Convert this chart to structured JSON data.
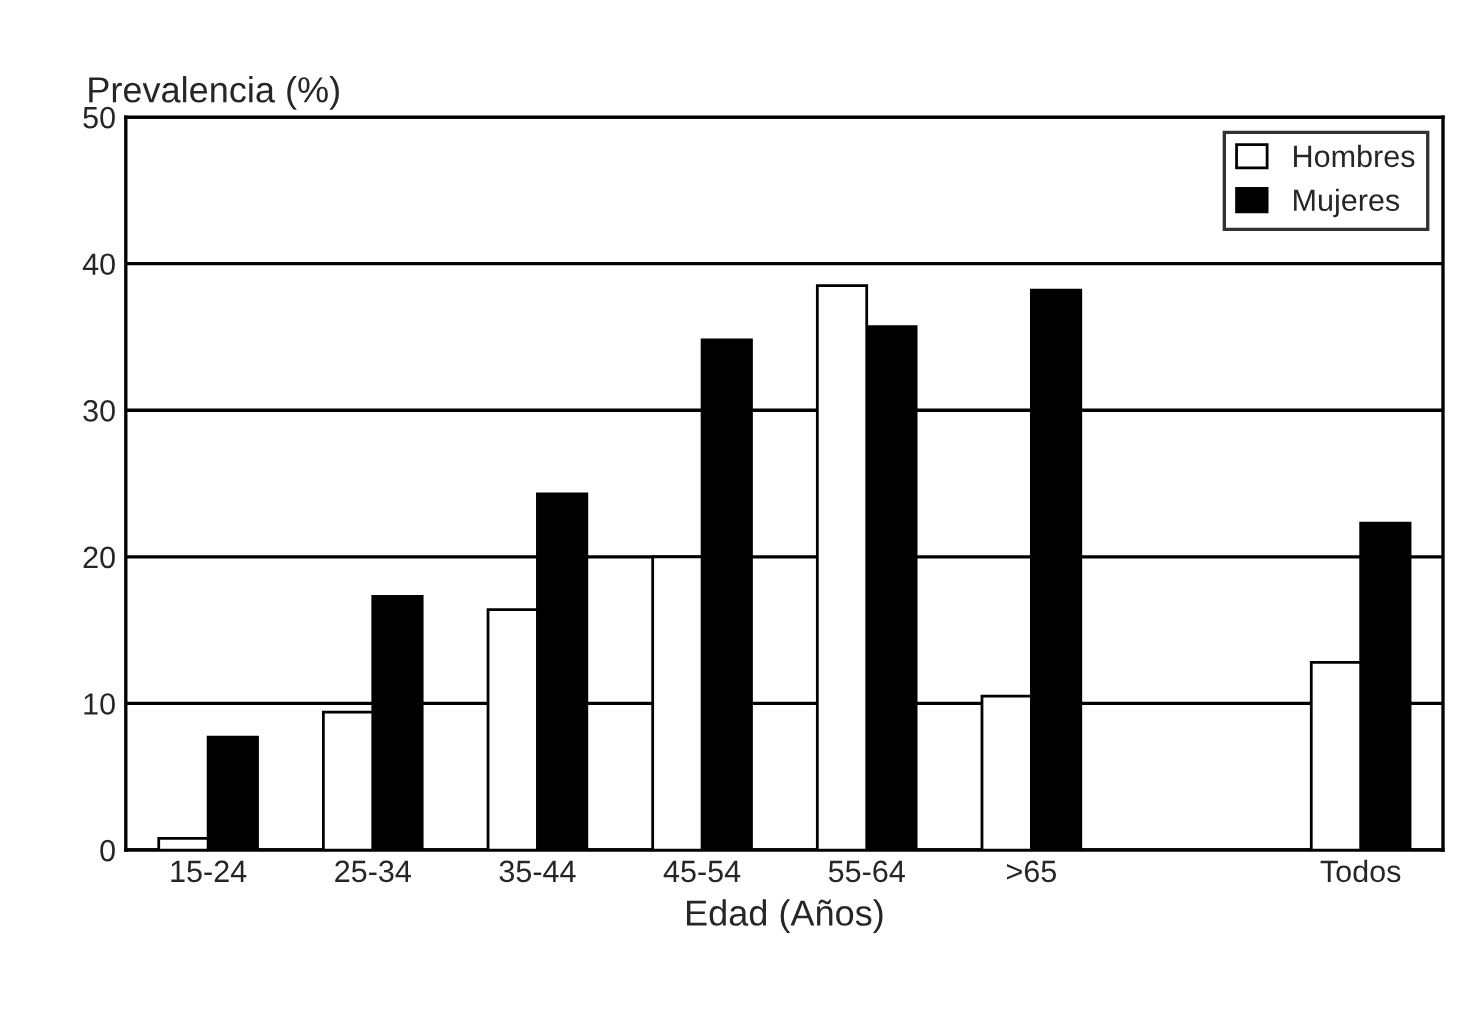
{
  "chart_data": {
    "type": "bar",
    "ylabel": "Prevalencia (%)",
    "xlabel": "Edad (Años)",
    "categories": [
      "15-24",
      "25-34",
      "35-44",
      "45-54",
      "55-64",
      ">65",
      null,
      "Todos"
    ],
    "series": [
      {
        "name": "Hombres",
        "color": "#ffffff",
        "values": [
          0.8,
          9.4,
          16.4,
          20,
          38.5,
          10.5,
          null,
          12.8
        ]
      },
      {
        "name": "Mujeres",
        "color": "#000000",
        "values": [
          7.7,
          17.3,
          24.3,
          34.8,
          35.7,
          38.2,
          null,
          22.3
        ]
      }
    ],
    "ylim": [
      0,
      50
    ],
    "yticks": [
      0,
      10,
      20,
      30,
      40,
      50
    ],
    "grid": "y",
    "legend": "top right"
  }
}
